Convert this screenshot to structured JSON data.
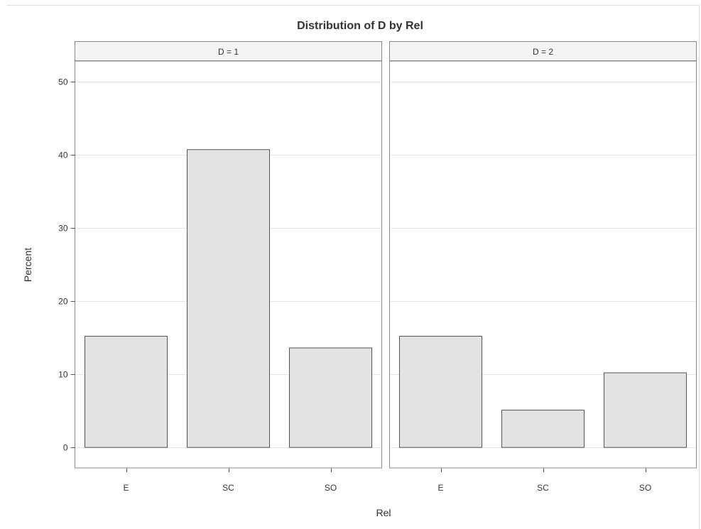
{
  "chart_data": {
    "type": "bar",
    "title": "Distribution of D by Rel",
    "xlabel": "Rel",
    "ylabel": "Percent",
    "ylim": [
      -2.8,
      52.8
    ],
    "yticks": [
      0,
      10,
      20,
      30,
      40,
      50
    ],
    "grid": true,
    "categories": [
      "E",
      "SC",
      "SO"
    ],
    "panels": [
      {
        "label": "D = 1",
        "values": [
          15.2,
          40.7,
          13.6
        ]
      },
      {
        "label": "D = 2",
        "values": [
          15.2,
          5.1,
          10.2
        ]
      }
    ],
    "colors": {
      "bar_fill": "#e3e3e3",
      "bar_stroke": "#555555",
      "grid": "#e4e4e4",
      "panel_border": "#8a8a8a",
      "header_fill": "#f4f4f4",
      "text": "#333333"
    }
  }
}
